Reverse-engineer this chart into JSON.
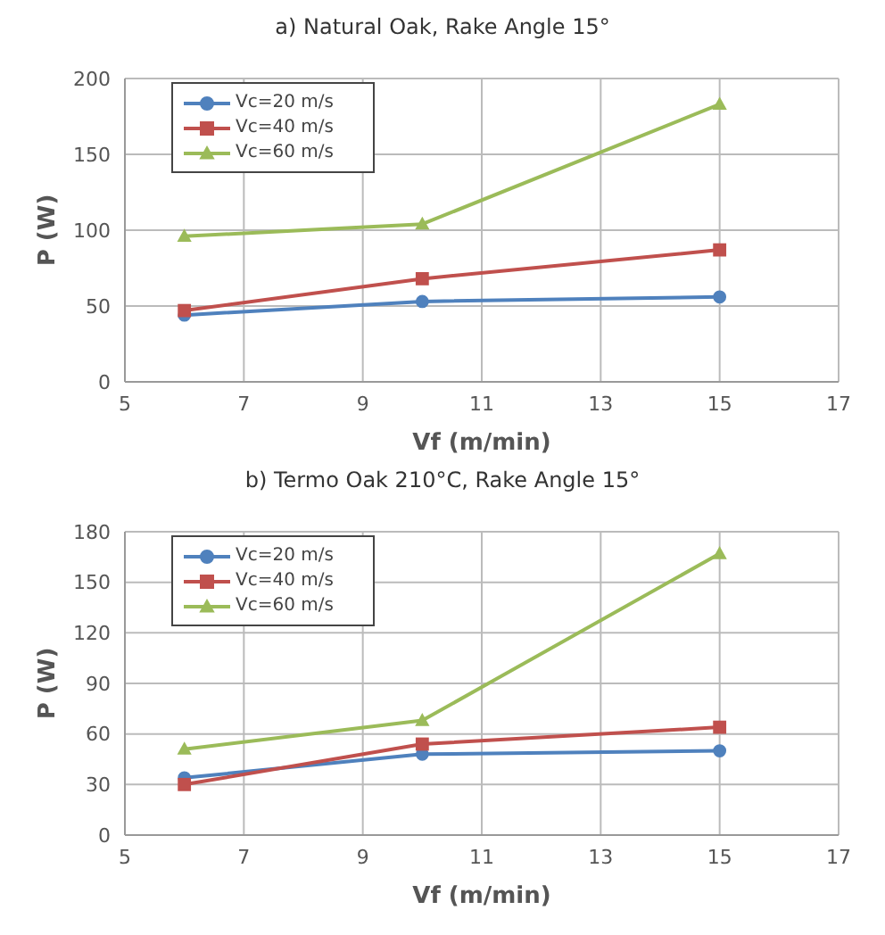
{
  "chart_data": [
    {
      "type": "line",
      "title": "a) Natural Oak, Rake Angle 15°",
      "xlabel": "Vf (m/min)",
      "ylabel": "P (W)",
      "x": [
        6,
        10,
        15
      ],
      "xlim": [
        5,
        17
      ],
      "xticks": [
        5,
        7,
        9,
        11,
        13,
        15,
        17
      ],
      "ylim": [
        0,
        200
      ],
      "yticks": [
        0,
        50,
        100,
        150,
        200
      ],
      "grid": true,
      "legend": "top left",
      "series": [
        {
          "name": "Vc=20 m/s",
          "color": "#4f81bd",
          "marker": "circle",
          "values": [
            44,
            53,
            56
          ]
        },
        {
          "name": "Vc=40 m/s",
          "color": "#c0504d",
          "marker": "square",
          "values": [
            47,
            68,
            87
          ]
        },
        {
          "name": "Vc=60 m/s",
          "color": "#9bbb59",
          "marker": "triangle",
          "values": [
            96,
            104,
            183
          ]
        }
      ]
    },
    {
      "type": "line",
      "title": "b) Termo Oak 210°C, Rake Angle 15°",
      "xlabel": "Vf (m/min)",
      "ylabel": "P (W)",
      "x": [
        6,
        10,
        15
      ],
      "xlim": [
        5,
        17
      ],
      "xticks": [
        5,
        7,
        9,
        11,
        13,
        15,
        17
      ],
      "ylim": [
        0,
        180
      ],
      "yticks": [
        0,
        30,
        60,
        90,
        120,
        150,
        180
      ],
      "grid": true,
      "legend": "top left",
      "series": [
        {
          "name": "Vc=20 m/s",
          "color": "#4f81bd",
          "marker": "circle",
          "values": [
            34,
            48,
            50
          ]
        },
        {
          "name": "Vc=40 m/s",
          "color": "#c0504d",
          "marker": "square",
          "values": [
            30,
            54,
            64
          ]
        },
        {
          "name": "Vc=60 m/s",
          "color": "#9bbb59",
          "marker": "triangle",
          "values": [
            51,
            68,
            167
          ]
        }
      ]
    }
  ]
}
